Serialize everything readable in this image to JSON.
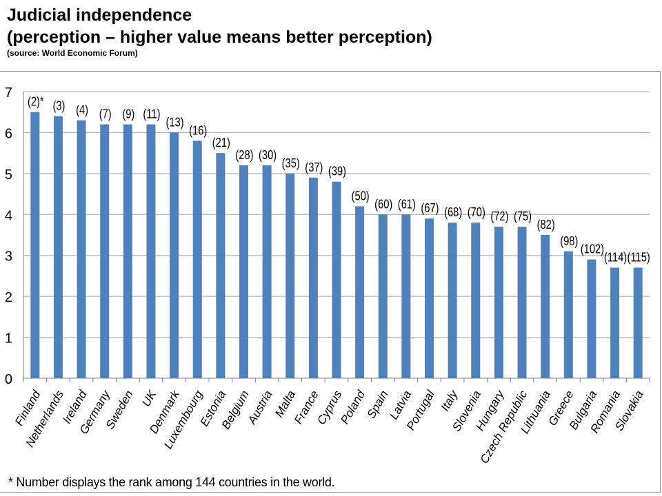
{
  "header": {
    "title_line1": "Judicial independence",
    "title_line2": "(perception – higher value means better perception)",
    "source": "(source: World Economic Forum)"
  },
  "footnote": "* Number displays the rank among 144 countries in the world.",
  "colors": {
    "bar": "#4f81bd",
    "grid": "#a6a6a6",
    "axis": "#808080",
    "text": "#000000"
  },
  "chart_data": {
    "type": "bar",
    "title": "",
    "xlabel": "",
    "ylabel": "",
    "ylim": [
      0,
      7
    ],
    "yticks": [
      "0",
      "1",
      "2",
      "3",
      "4",
      "5",
      "6",
      "7"
    ],
    "grid": true,
    "categories": [
      "Finland",
      "Netherlands",
      "Ireland",
      "Germany",
      "Sweden",
      "UK",
      "Denmark",
      "Luxembourg",
      "Estonia",
      "Belgium",
      "Austria",
      "Malta",
      "France",
      "Cyprus",
      "Poland",
      "Spain",
      "Latvia",
      "Portugal",
      "Italy",
      "Slovenia",
      "Hungary",
      "Czech Republic",
      "Lithuania",
      "Greece",
      "Bulgaria",
      "Romania",
      "Slovakia"
    ],
    "values": [
      6.5,
      6.4,
      6.3,
      6.2,
      6.2,
      6.2,
      6.0,
      5.8,
      5.5,
      5.2,
      5.2,
      5.0,
      4.9,
      4.8,
      4.2,
      4.0,
      4.0,
      3.9,
      3.8,
      3.8,
      3.7,
      3.7,
      3.5,
      3.1,
      2.9,
      2.7,
      2.7
    ],
    "data_labels": [
      "(2)*",
      "(3)",
      "(4)",
      "(7)",
      "(9)",
      "(11)",
      "(13)",
      "(16)",
      "(21)",
      "(28)",
      "(30)",
      "(35)",
      "(37)",
      "(39)",
      "(50)",
      "(60)",
      "(61)",
      "(67)",
      "(68)",
      "(70)",
      "(72)",
      "(75)",
      "(82)",
      "(98)",
      "(102)",
      "(114)",
      "(115)"
    ]
  }
}
